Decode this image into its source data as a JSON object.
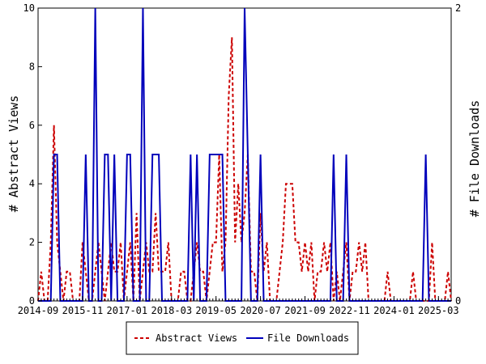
{
  "chart_data": {
    "type": "line",
    "ylabel_left": "# Abstract Views",
    "ylabel_right": "# File Downloads",
    "ylim_left": [
      0,
      10
    ],
    "ylim_right": [
      0,
      2
    ],
    "yticks_left": [
      "0",
      "2",
      "4",
      "6",
      "8",
      "10"
    ],
    "yticks_right": [
      "0",
      "2"
    ],
    "xtick_labels": [
      "2014-09",
      "2015-11",
      "2017-01",
      "2018-03",
      "2019-05",
      "2020-07",
      "2021-09",
      "2022-11",
      "2024-01",
      "2025-03"
    ],
    "x_start": "2014-09",
    "x_months": 131,
    "legend_placement": "bottom",
    "grid": false,
    "series": [
      {
        "name": "Abstract Views",
        "axis": "left",
        "color": "#cc0000",
        "style": "dashed",
        "values": [
          0,
          1,
          0,
          0,
          2,
          6,
          2,
          1,
          0,
          1,
          1,
          0,
          0,
          0,
          2,
          1,
          0,
          0,
          1,
          2,
          1,
          0,
          1,
          2,
          1,
          1,
          2,
          0,
          1,
          2,
          0,
          3,
          0,
          1,
          2,
          1,
          1,
          3,
          1,
          1,
          1,
          2,
          0,
          0,
          0,
          1,
          1,
          0,
          0,
          1,
          2,
          1,
          1,
          0,
          1,
          2,
          2,
          5,
          1,
          2,
          7,
          9,
          2,
          4,
          2,
          3,
          5,
          1,
          1,
          0,
          3,
          1,
          2,
          0,
          0,
          0,
          1,
          2,
          4,
          4,
          4,
          2,
          2,
          1,
          2,
          1,
          2,
          0,
          1,
          1,
          2,
          1,
          2,
          0,
          1,
          0,
          1,
          2,
          0,
          1,
          1,
          2,
          1,
          2,
          0,
          0,
          0,
          0,
          0,
          0,
          1,
          0,
          0,
          0,
          0,
          0,
          0,
          0,
          1,
          0,
          0,
          0,
          0,
          0,
          2,
          0,
          0,
          0,
          0,
          1,
          0
        ]
      },
      {
        "name": "File Downloads",
        "axis": "right",
        "color": "#0000bb",
        "style": "solid",
        "values": [
          0,
          0,
          0,
          0,
          0,
          1,
          1,
          0,
          0,
          0,
          0,
          0,
          0,
          0,
          0,
          1,
          0,
          0,
          2,
          0,
          0,
          1,
          1,
          0,
          1,
          0,
          0,
          0,
          1,
          1,
          0,
          0,
          0,
          2,
          0,
          0,
          1,
          1,
          1,
          0,
          0,
          0,
          0,
          0,
          0,
          0,
          0,
          0,
          1,
          0,
          1,
          0,
          0,
          0,
          1,
          1,
          1,
          1,
          1,
          0,
          0,
          0,
          0,
          0,
          0,
          2,
          1,
          0,
          0,
          0,
          1,
          0,
          0,
          0,
          0,
          0,
          0,
          0,
          0,
          0,
          0,
          0,
          0,
          0,
          0,
          0,
          0,
          0,
          0,
          0,
          0,
          0,
          0,
          1,
          0,
          0,
          0,
          1,
          0,
          0,
          0,
          0,
          0,
          0,
          0,
          0,
          0,
          0,
          0,
          0,
          0,
          0,
          0,
          0,
          0,
          0,
          0,
          0,
          0,
          0,
          0,
          0,
          1,
          0,
          0,
          0,
          0,
          0,
          0,
          0,
          0
        ]
      }
    ]
  }
}
